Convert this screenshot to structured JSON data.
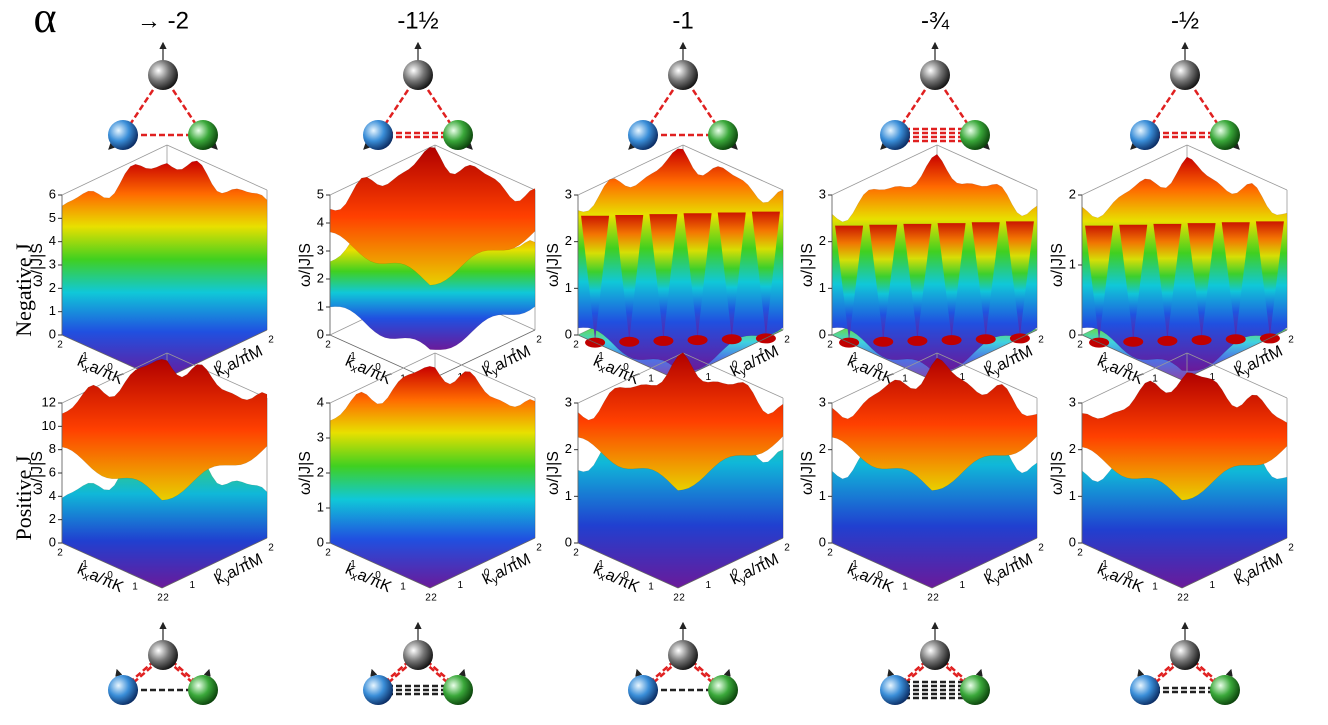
{
  "header": {
    "symbol": "α",
    "columns": [
      "→ -2",
      "-1½",
      "-1",
      "-¾",
      "-½"
    ]
  },
  "rows": [
    {
      "label": "Negative J",
      "panels": [
        {
          "zticks": [
            0,
            1,
            2,
            3,
            4,
            5,
            6
          ]
        },
        {
          "zticks": [
            0,
            1,
            2,
            3,
            4,
            5
          ]
        },
        {
          "zticks": [
            0,
            1,
            2,
            3
          ]
        },
        {
          "zticks": [
            0,
            1,
            2,
            3
          ]
        },
        {
          "zticks": [
            0,
            1,
            2
          ]
        }
      ]
    },
    {
      "label": "Positive J",
      "panels": [
        {
          "zticks": [
            0,
            2,
            4,
            6,
            8,
            10,
            12
          ]
        },
        {
          "zticks": [
            0,
            1,
            2,
            3,
            4
          ]
        },
        {
          "zticks": [
            0,
            1,
            2,
            3
          ]
        },
        {
          "zticks": [
            0,
            1,
            2,
            3
          ]
        },
        {
          "zticks": [
            0,
            1,
            2,
            3
          ]
        }
      ]
    }
  ],
  "axes": {
    "z": "ω/|J|S",
    "x": [
      "k",
      "x",
      "a/πK"
    ],
    "y": [
      "k",
      "y",
      "a/πM"
    ],
    "kticks": [
      2,
      1,
      0,
      1,
      2
    ]
  }
}
